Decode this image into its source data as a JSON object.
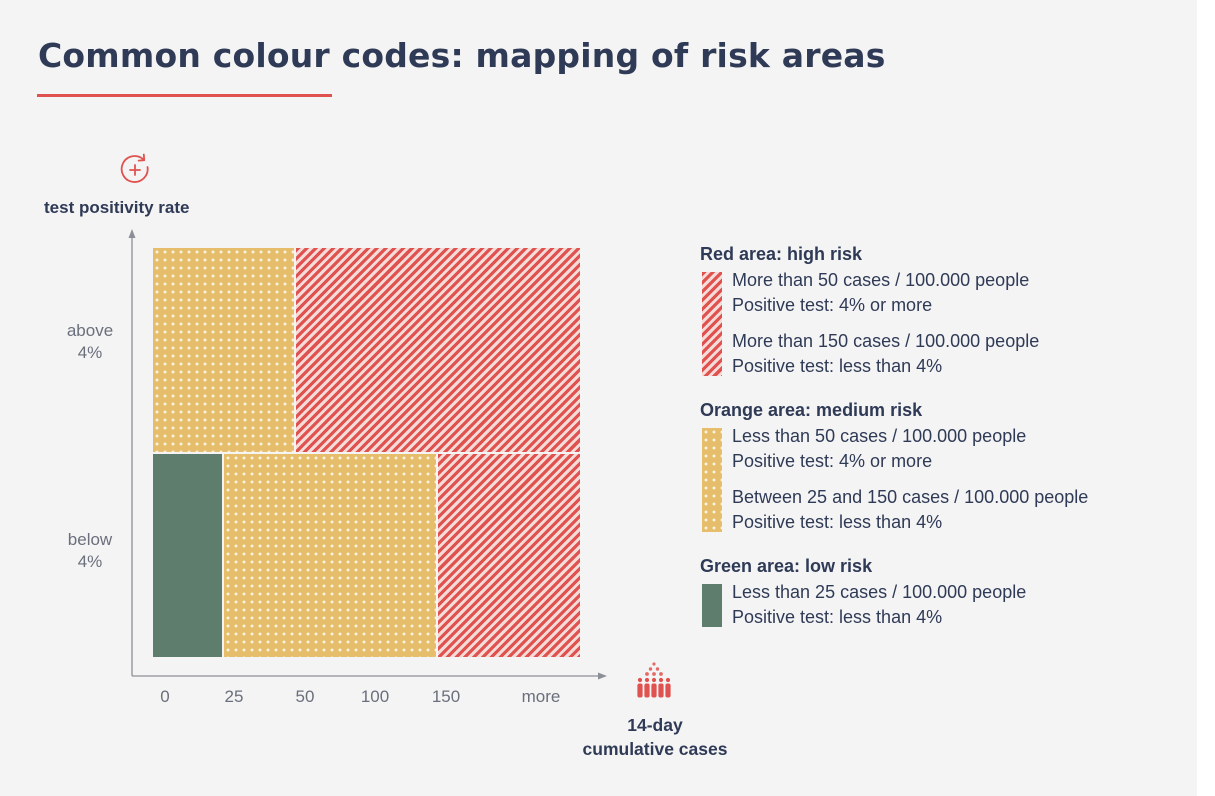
{
  "title": "Common colour codes: mapping of risk areas",
  "y_axis": {
    "icon": "test-positivity-icon",
    "title": "test positivity rate",
    "ticks": [
      [
        "above",
        "4%"
      ],
      [
        "below",
        "4%"
      ]
    ]
  },
  "x_axis": {
    "icon": "people-crowd-icon",
    "title": [
      "14-day",
      "cumulative cases"
    ],
    "ticks": [
      "0",
      "25",
      "50",
      "100",
      "150",
      "more"
    ]
  },
  "colors": {
    "red": "#e0524f",
    "orange": "#e5bd6b",
    "green": "#5e7d6c",
    "text": "#2f3a56",
    "accent": "#e0524f"
  },
  "zones": [
    {
      "risk": "medium",
      "positivity": "above 4%",
      "cases_from": "0",
      "cases_to": "50"
    },
    {
      "risk": "high",
      "positivity": "above 4%",
      "cases_from": "50",
      "cases_to": "more"
    },
    {
      "risk": "low",
      "positivity": "below 4%",
      "cases_from": "0",
      "cases_to": "25"
    },
    {
      "risk": "medium",
      "positivity": "below 4%",
      "cases_from": "25",
      "cases_to": "150"
    },
    {
      "risk": "high",
      "positivity": "below 4%",
      "cases_from": "150",
      "cases_to": "more"
    }
  ],
  "legend": [
    {
      "title": "Red area: high risk",
      "color": "red",
      "entries": [
        [
          "More than 50 cases / 100.000 people",
          "Positive test: 4% or more"
        ],
        [
          "More than 150 cases / 100.000 people",
          "Positive test: less than 4%"
        ]
      ]
    },
    {
      "title": "Orange area: medium risk",
      "color": "orange",
      "entries": [
        [
          "Less than 50 cases / 100.000 people",
          "Positive test: 4% or more"
        ],
        [
          "Between 25 and 150 cases / 100.000 people",
          "Positive test: less than 4%"
        ]
      ]
    },
    {
      "title": "Green area: low risk",
      "color": "green",
      "entries": [
        [
          "Less than 25 cases / 100.000 people",
          "Positive test: less than 4%"
        ]
      ]
    }
  ]
}
